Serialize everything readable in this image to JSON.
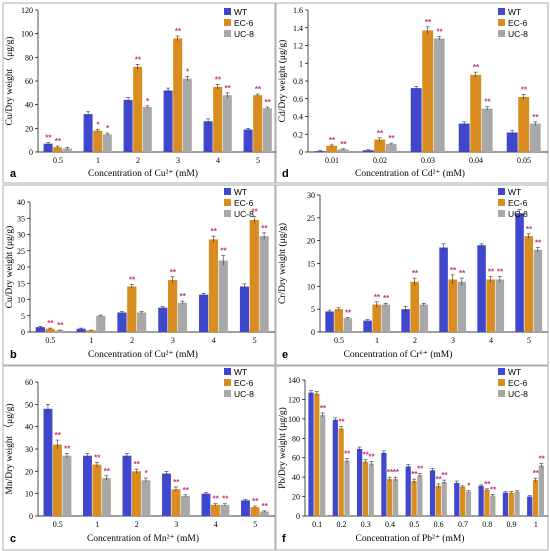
{
  "colors": {
    "WT": "#3f48cc",
    "EC-6": "#d98c1f",
    "UC-8": "#a8a8a8",
    "sig": "#c0387a"
  },
  "chart_data": [
    {
      "panel": "a",
      "type": "bar",
      "xlabel": "Concentration of Cu²⁺ (mM)",
      "ylabel": "Cu/Dry weight （μg/g)",
      "categories": [
        "0.5",
        "1",
        "2",
        "3",
        "4",
        "5"
      ],
      "ylim": [
        0,
        120
      ],
      "yticks": [
        0,
        20,
        40,
        60,
        80,
        100,
        120
      ],
      "series": [
        {
          "name": "WT",
          "values": [
            7,
            32,
            44,
            52,
            26,
            19
          ],
          "err": [
            1,
            2,
            2,
            2,
            2,
            1
          ]
        },
        {
          "name": "EC-6",
          "values": [
            4,
            18,
            72,
            96,
            55,
            48
          ],
          "err": [
            1,
            1,
            2,
            2,
            2,
            1
          ]
        },
        {
          "name": "UC-8",
          "values": [
            3,
            15,
            38,
            62,
            48,
            37
          ],
          "err": [
            1,
            1,
            1,
            2,
            2,
            1
          ]
        }
      ],
      "sig": [
        [
          "**",
          "**",
          ""
        ],
        [
          "",
          "*",
          "*"
        ],
        [
          "",
          "**",
          "*"
        ],
        [
          "",
          "**",
          "*"
        ],
        [
          "",
          "**",
          "**"
        ],
        [
          "",
          "**",
          "**"
        ]
      ],
      "legend": [
        "WT",
        "EC-6",
        "UC-8"
      ]
    },
    {
      "panel": "d",
      "type": "bar",
      "xlabel": "Concentration of Cd²⁺ (mM)",
      "ylabel": "Cd/Dry weight (μg/g)",
      "categories": [
        "0.01",
        "0.02",
        "0.03",
        "0.04",
        "0.05"
      ],
      "ylim": [
        0,
        1.6
      ],
      "yticks": [
        "0",
        "0.2",
        "0.4",
        "0.6",
        "0.8",
        "1",
        "1.2",
        "1.4",
        "1.6"
      ],
      "series": [
        {
          "name": "WT",
          "values": [
            0.01,
            0.02,
            0.72,
            0.32,
            0.22
          ],
          "err": [
            0.005,
            0.005,
            0.02,
            0.02,
            0.02
          ]
        },
        {
          "name": "EC-6",
          "values": [
            0.07,
            0.14,
            1.37,
            0.87,
            0.62
          ],
          "err": [
            0.01,
            0.02,
            0.04,
            0.03,
            0.03
          ]
        },
        {
          "name": "UC-8",
          "values": [
            0.03,
            0.09,
            1.28,
            0.49,
            0.32
          ],
          "err": [
            0.005,
            0.01,
            0.02,
            0.02,
            0.02
          ]
        }
      ],
      "sig": [
        [
          "",
          "**",
          "**"
        ],
        [
          "",
          "**",
          "**"
        ],
        [
          "",
          "**",
          "**"
        ],
        [
          "",
          "**",
          "**"
        ],
        [
          "",
          "**",
          "**"
        ]
      ],
      "legend": [
        "WT",
        "EC-6",
        "UC-8"
      ]
    },
    {
      "panel": "b",
      "type": "bar",
      "xlabel": "Concentration of Cu²⁺ (mM)",
      "ylabel": "Cu/Dry weight (μg/g)",
      "categories": [
        "0.5",
        "1",
        "2",
        "3",
        "4",
        "5"
      ],
      "ylim": [
        0,
        40
      ],
      "yticks": [
        0,
        5,
        10,
        15,
        20,
        25,
        30,
        35,
        40
      ],
      "series": [
        {
          "name": "WT",
          "values": [
            1.5,
            1,
            6,
            7.5,
            11.5,
            14
          ],
          "err": [
            0.2,
            0.2,
            0.3,
            0.3,
            0.4,
            0.8
          ]
        },
        {
          "name": "EC-6",
          "values": [
            1,
            0.5,
            14,
            16,
            28.5,
            34.5
          ],
          "err": [
            0.2,
            0.1,
            0.6,
            1,
            1,
            1
          ]
        },
        {
          "name": "UC-8",
          "values": [
            0.5,
            5,
            6,
            9,
            22,
            29.5
          ],
          "err": [
            0.1,
            0.2,
            0.3,
            0.5,
            1.5,
            1
          ]
        }
      ],
      "sig": [
        [
          "",
          "**",
          "**"
        ],
        [
          "",
          "",
          ""
        ],
        [
          "",
          "**",
          ""
        ],
        [
          "",
          "**",
          "**"
        ],
        [
          "",
          "**",
          "**"
        ],
        [
          "",
          "**",
          "**"
        ]
      ],
      "legend": [
        "WT",
        "EC-6",
        "UC-8"
      ]
    },
    {
      "panel": "e",
      "type": "bar",
      "xlabel": "Concentration of Cr⁶⁺ (mM)",
      "ylabel": "Cr/Dry weight (μg/g)",
      "categories": [
        "0.5",
        "1",
        "2",
        "3",
        "4",
        "5"
      ],
      "ylim": [
        0,
        30
      ],
      "yticks": [
        0,
        5,
        10,
        15,
        20,
        25,
        30
      ],
      "series": [
        {
          "name": "WT",
          "values": [
            4.5,
            2.5,
            5,
            18.5,
            19,
            26
          ],
          "err": [
            0.3,
            0.2,
            0.6,
            0.8,
            0.3,
            0.8
          ]
        },
        {
          "name": "EC-6",
          "values": [
            5,
            6,
            11,
            11.5,
            11.5,
            21
          ],
          "err": [
            0.3,
            0.6,
            0.8,
            1,
            0.6,
            0.5
          ]
        },
        {
          "name": "UC-8",
          "values": [
            3,
            6,
            6,
            11,
            11.5,
            18
          ],
          "err": [
            0.2,
            0.3,
            0.3,
            0.8,
            0.6,
            0.5
          ]
        }
      ],
      "sig": [
        [
          "",
          "",
          "**"
        ],
        [
          "",
          "**",
          "**"
        ],
        [
          "",
          "**",
          ""
        ],
        [
          "",
          "**",
          "**"
        ],
        [
          "",
          "**",
          "**"
        ],
        [
          "",
          "**",
          "**"
        ]
      ],
      "legend": [
        "WT",
        "EC-6",
        "UC-8"
      ]
    },
    {
      "panel": "c",
      "type": "bar",
      "xlabel": "Concentration of Mn²⁺ (mM)",
      "ylabel": "Mn/Dry weight （μg/g)",
      "categories": [
        "0.5",
        "1",
        "2",
        "3",
        "4",
        "5"
      ],
      "ylim": [
        0,
        60
      ],
      "yticks": [
        0,
        10,
        20,
        30,
        40,
        50,
        60
      ],
      "series": [
        {
          "name": "WT",
          "values": [
            48,
            27,
            27,
            19,
            10,
            7
          ],
          "err": [
            2,
            1,
            1,
            1,
            0.5,
            0.5
          ]
        },
        {
          "name": "EC-6",
          "values": [
            32,
            23,
            20,
            12,
            5,
            4
          ],
          "err": [
            2,
            1,
            1,
            1,
            0.5,
            0.5
          ]
        },
        {
          "name": "UC-8",
          "values": [
            27,
            17,
            16,
            9,
            5,
            2
          ],
          "err": [
            1,
            1,
            1,
            0.5,
            0.5,
            0.3
          ]
        }
      ],
      "sig": [
        [
          "",
          "**",
          "**"
        ],
        [
          "",
          "**",
          "**"
        ],
        [
          "",
          "**",
          "*"
        ],
        [
          "",
          "**",
          "**"
        ],
        [
          "",
          "**",
          "**"
        ],
        [
          "",
          "**",
          "**"
        ]
      ],
      "legend": [
        "WT",
        "EC-6",
        "UC-8"
      ]
    },
    {
      "panel": "f",
      "type": "bar",
      "xlabel": "Concentration of Pb²⁺ (mM)",
      "ylabel": "Pb/Dry weight (μg/g)",
      "categories": [
        "0.1",
        "0.2",
        "0.3",
        "0.4",
        "0.5",
        "0.6",
        "0.7",
        "0.8",
        "0.9",
        "1"
      ],
      "ylim": [
        0,
        140
      ],
      "yticks": [
        0,
        20,
        40,
        60,
        80,
        100,
        120,
        140
      ],
      "series": [
        {
          "name": "WT",
          "values": [
            127,
            99,
            69,
            65,
            51,
            47,
            34,
            31,
            24,
            20
          ],
          "err": [
            2,
            2,
            2,
            2,
            2,
            2,
            2,
            1,
            1,
            1
          ]
        },
        {
          "name": "EC-6",
          "values": [
            126,
            90,
            56,
            38,
            36,
            31,
            30,
            27,
            24,
            37
          ],
          "err": [
            2,
            2,
            2,
            2,
            2,
            2,
            1,
            1,
            1,
            2
          ]
        },
        {
          "name": "UC-8",
          "values": [
            104,
            57,
            54,
            38,
            42,
            35,
            25,
            21,
            25,
            52
          ],
          "err": [
            2,
            2,
            2,
            2,
            2,
            2,
            1,
            1,
            1,
            2
          ]
        }
      ],
      "sig": [
        [
          "",
          "",
          "**"
        ],
        [
          "",
          "**",
          "**"
        ],
        [
          "",
          "**",
          "**"
        ],
        [
          "",
          "**",
          "**"
        ],
        [
          "",
          "**",
          "**"
        ],
        [
          "",
          "**",
          "**"
        ],
        [
          "",
          "",
          "*"
        ],
        [
          "",
          "**",
          "**"
        ],
        [
          "",
          "",
          ""
        ],
        [
          "",
          "**",
          "**"
        ]
      ],
      "legend": [
        "WT",
        "EC-6",
        "UC-8"
      ]
    }
  ]
}
